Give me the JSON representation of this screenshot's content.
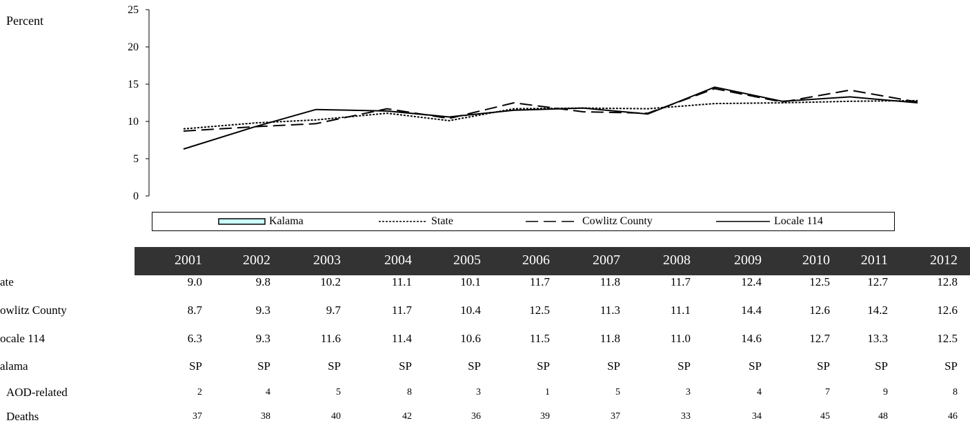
{
  "chart_data": {
    "type": "line",
    "ylabel": "Percent",
    "ylim": [
      0,
      25
    ],
    "yticks": [
      "0",
      "5",
      "10",
      "15",
      "20",
      "25"
    ],
    "x": [
      "2001",
      "2002",
      "2003",
      "2004",
      "2005",
      "2006",
      "2007",
      "2008",
      "2009",
      "2010",
      "2011",
      "2012"
    ],
    "legend": [
      "Kalama",
      "State",
      "Cowlitz County",
      "Locale 114"
    ],
    "legend_position": "bottom",
    "series": [
      {
        "name": "State",
        "style": "dotted",
        "values": [
          9.0,
          9.8,
          10.2,
          11.1,
          10.1,
          11.7,
          11.8,
          11.7,
          12.4,
          12.5,
          12.7,
          12.8
        ]
      },
      {
        "name": "Cowlitz County",
        "style": "dashed",
        "values": [
          8.7,
          9.3,
          9.7,
          11.7,
          10.4,
          12.5,
          11.3,
          11.1,
          14.4,
          12.6,
          14.2,
          12.6
        ]
      },
      {
        "name": "Locale 114",
        "style": "solid",
        "values": [
          6.3,
          9.3,
          11.6,
          11.4,
          10.6,
          11.5,
          11.8,
          11.0,
          14.6,
          12.7,
          13.3,
          12.5
        ]
      }
    ],
    "grid": false
  },
  "table": {
    "years": [
      "2001",
      "2002",
      "2003",
      "2004",
      "2005",
      "2006",
      "2007",
      "2008",
      "2009",
      "2010",
      "2011",
      "2012"
    ],
    "rows": [
      {
        "label": "ate",
        "size": "big",
        "values": [
          "9.0",
          "9.8",
          "10.2",
          "11.1",
          "10.1",
          "11.7",
          "11.8",
          "11.7",
          "12.4",
          "12.5",
          "12.7",
          "12.8"
        ]
      },
      {
        "label": "owlitz County",
        "size": "big",
        "values": [
          "8.7",
          "9.3",
          "9.7",
          "11.7",
          "10.4",
          "12.5",
          "11.3",
          "11.1",
          "14.4",
          "12.6",
          "14.2",
          "12.6"
        ]
      },
      {
        "label": "ocale 114",
        "size": "big",
        "values": [
          "6.3",
          "9.3",
          "11.6",
          "11.4",
          "10.6",
          "11.5",
          "11.8",
          "11.0",
          "14.6",
          "12.7",
          "13.3",
          "12.5"
        ]
      },
      {
        "label": "alama",
        "size": "big",
        "values": [
          "SP",
          "SP",
          "SP",
          "SP",
          "SP",
          "SP",
          "SP",
          "SP",
          "SP",
          "SP",
          "SP",
          "SP"
        ]
      },
      {
        "label": "AOD-related",
        "size": "small",
        "values": [
          "2",
          "4",
          "5",
          "8",
          "3",
          "1",
          "5",
          "3",
          "4",
          "7",
          "9",
          "8"
        ]
      },
      {
        "label": "Deaths",
        "size": "small",
        "values": [
          "37",
          "38",
          "40",
          "42",
          "36",
          "39",
          "37",
          "33",
          "34",
          "45",
          "48",
          "46"
        ]
      }
    ]
  },
  "colors": {
    "header_bg": "#333333",
    "header_text": "#ffffff",
    "kalama_fill": "#ccffff",
    "line": "#000000"
  }
}
